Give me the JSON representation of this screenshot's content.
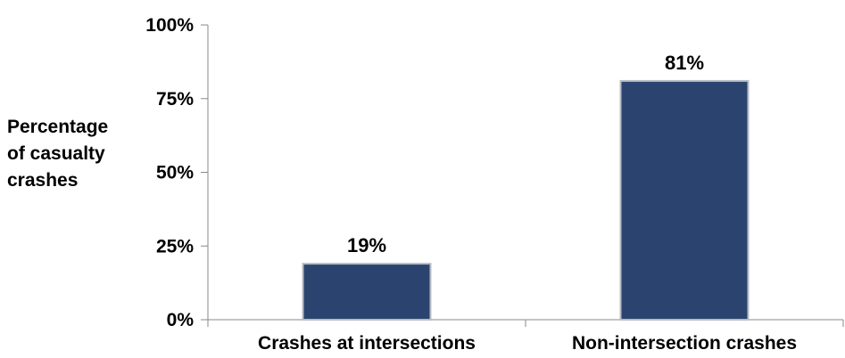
{
  "chart_data": {
    "type": "bar",
    "categories": [
      "Crashes at intersections",
      "Non-intersection crashes"
    ],
    "values": [
      19,
      81
    ],
    "data_labels": [
      "19%",
      "81%"
    ],
    "ylabel_lines": [
      "Percentage",
      "of casualty",
      "crashes"
    ],
    "yticks": [
      0,
      25,
      50,
      75,
      100
    ],
    "ytick_labels": [
      "0%",
      "25%",
      "50%",
      "75%",
      "100%"
    ],
    "ylim": [
      0,
      100
    ],
    "grid": false,
    "colors": {
      "bar_fill": "#2b446f",
      "bar_stroke": "#b8bcc4",
      "axis": "#888888"
    }
  }
}
